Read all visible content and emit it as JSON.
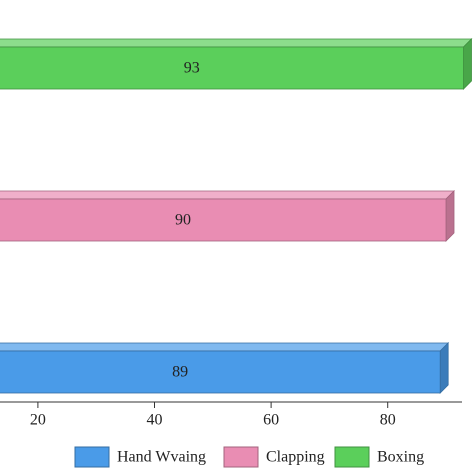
{
  "chart_data": {
    "type": "bar3d-horizontal",
    "categories": [
      null
    ],
    "series": [
      {
        "name": "Hand Wvaing",
        "color": "#4a9be8",
        "values": [
          89
        ]
      },
      {
        "name": "Clapping",
        "color": "#e98db3",
        "values": [
          90
        ]
      },
      {
        "name": "Boxing",
        "color": "#5bcf5b",
        "values": [
          93
        ]
      }
    ],
    "xlim": [
      13.5,
      94.8
    ],
    "xticks": [
      20,
      40,
      60,
      80
    ]
  }
}
